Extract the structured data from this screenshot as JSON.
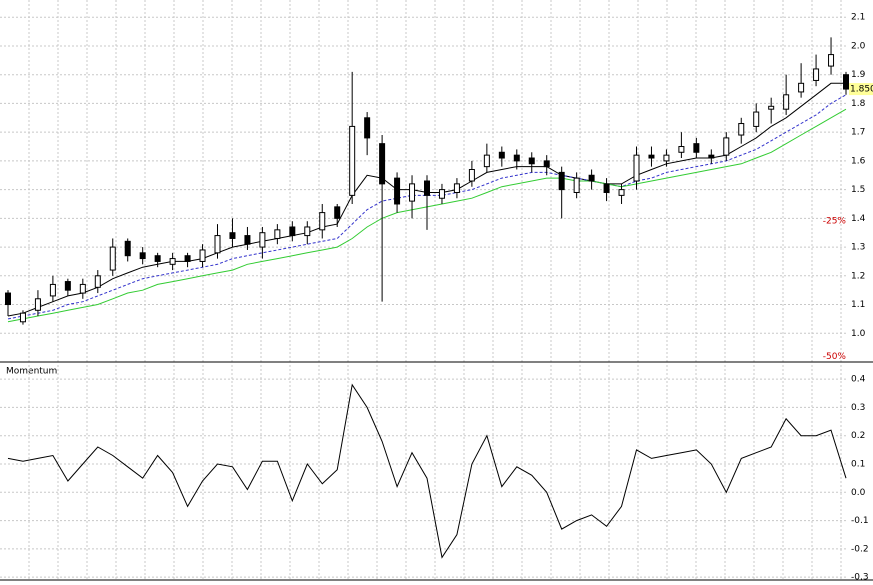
{
  "chart_data": [
    {
      "type": "candlestick",
      "categories": [
        null,
        null,
        null,
        null,
        null,
        null,
        null,
        null,
        null,
        null,
        null,
        null,
        null,
        null,
        null,
        null,
        null,
        null,
        null,
        null,
        null,
        null,
        null,
        null,
        null,
        null,
        null,
        null,
        null,
        null,
        null,
        null,
        null,
        null,
        null,
        null,
        null,
        null,
        null,
        null,
        null,
        null,
        null,
        null,
        null,
        null,
        null,
        null,
        null,
        null,
        null,
        null,
        null,
        null,
        null,
        null,
        null
      ],
      "open": [
        1.14,
        1.04,
        1.08,
        1.13,
        1.18,
        1.14,
        1.16,
        1.22,
        1.32,
        1.28,
        1.27,
        1.24,
        1.27,
        1.25,
        1.28,
        1.35,
        1.34,
        1.3,
        1.33,
        1.37,
        1.34,
        1.36,
        1.44,
        1.48,
        1.75,
        1.66,
        1.54,
        1.46,
        1.53,
        1.47,
        1.49,
        1.53,
        1.58,
        1.63,
        1.62,
        1.61,
        1.6,
        1.56,
        1.49,
        1.55,
        1.52,
        1.48,
        1.53,
        1.62,
        1.6,
        1.63,
        1.66,
        1.62,
        1.62,
        1.69,
        1.72,
        1.78,
        1.78,
        1.84,
        1.88,
        1.93,
        1.9
      ],
      "high": [
        1.15,
        1.08,
        1.15,
        1.2,
        1.19,
        1.19,
        1.22,
        1.33,
        1.33,
        1.3,
        1.28,
        1.28,
        1.28,
        1.31,
        1.38,
        1.4,
        1.37,
        1.37,
        1.38,
        1.39,
        1.39,
        1.45,
        1.45,
        1.91,
        1.77,
        1.69,
        1.56,
        1.55,
        1.55,
        1.52,
        1.54,
        1.6,
        1.66,
        1.65,
        1.64,
        1.63,
        1.62,
        1.58,
        1.56,
        1.57,
        1.54,
        1.52,
        1.65,
        1.65,
        1.64,
        1.7,
        1.68,
        1.64,
        1.7,
        1.75,
        1.8,
        1.82,
        1.9,
        1.94,
        1.97,
        2.03,
        1.91
      ],
      "low": [
        1.06,
        1.03,
        1.06,
        1.11,
        1.13,
        1.12,
        1.14,
        1.2,
        1.25,
        1.24,
        1.23,
        1.22,
        1.23,
        1.23,
        1.26,
        1.3,
        1.29,
        1.26,
        1.31,
        1.32,
        1.31,
        1.33,
        1.37,
        1.45,
        1.62,
        1.11,
        1.42,
        1.4,
        1.36,
        1.45,
        1.47,
        1.51,
        1.56,
        1.58,
        1.57,
        1.56,
        1.55,
        1.4,
        1.47,
        1.5,
        1.46,
        1.45,
        1.5,
        1.58,
        1.58,
        1.61,
        1.61,
        1.59,
        1.6,
        1.66,
        1.7,
        1.73,
        1.76,
        1.82,
        1.86,
        1.9,
        1.83
      ],
      "close": [
        1.1,
        1.07,
        1.12,
        1.17,
        1.15,
        1.17,
        1.2,
        1.3,
        1.27,
        1.26,
        1.25,
        1.26,
        1.25,
        1.29,
        1.34,
        1.33,
        1.31,
        1.35,
        1.36,
        1.34,
        1.37,
        1.42,
        1.4,
        1.72,
        1.68,
        1.52,
        1.45,
        1.52,
        1.48,
        1.5,
        1.52,
        1.57,
        1.62,
        1.61,
        1.6,
        1.59,
        1.58,
        1.5,
        1.54,
        1.53,
        1.49,
        1.5,
        1.62,
        1.61,
        1.62,
        1.65,
        1.63,
        1.61,
        1.68,
        1.73,
        1.77,
        1.79,
        1.83,
        1.87,
        1.92,
        1.97,
        1.85
      ],
      "series": [
        {
          "color": "#000000",
          "style": "solid",
          "values": [
            1.06,
            1.07,
            1.09,
            1.11,
            1.13,
            1.14,
            1.16,
            1.19,
            1.21,
            1.23,
            1.24,
            1.25,
            1.25,
            1.26,
            1.28,
            1.3,
            1.31,
            1.32,
            1.33,
            1.34,
            1.35,
            1.37,
            1.38,
            1.48,
            1.55,
            1.54,
            1.5,
            1.5,
            1.49,
            1.49,
            1.5,
            1.53,
            1.56,
            1.57,
            1.58,
            1.58,
            1.58,
            1.55,
            1.54,
            1.53,
            1.52,
            1.52,
            1.55,
            1.57,
            1.59,
            1.6,
            1.61,
            1.61,
            1.62,
            1.65,
            1.68,
            1.72,
            1.75,
            1.79,
            1.83,
            1.87,
            1.87
          ]
        },
        {
          "color": "#3333cc",
          "style": "dashed",
          "values": [
            1.05,
            1.06,
            1.07,
            1.08,
            1.1,
            1.11,
            1.13,
            1.15,
            1.17,
            1.19,
            1.2,
            1.21,
            1.22,
            1.23,
            1.24,
            1.26,
            1.27,
            1.28,
            1.29,
            1.3,
            1.31,
            1.32,
            1.33,
            1.38,
            1.43,
            1.46,
            1.47,
            1.48,
            1.48,
            1.48,
            1.49,
            1.5,
            1.52,
            1.54,
            1.55,
            1.56,
            1.56,
            1.55,
            1.54,
            1.53,
            1.52,
            1.51,
            1.53,
            1.54,
            1.56,
            1.57,
            1.58,
            1.59,
            1.6,
            1.62,
            1.64,
            1.67,
            1.7,
            1.73,
            1.76,
            1.8,
            1.83
          ]
        },
        {
          "color": "#33cc33",
          "style": "solid",
          "values": [
            1.04,
            1.05,
            1.06,
            1.07,
            1.08,
            1.09,
            1.1,
            1.12,
            1.14,
            1.15,
            1.17,
            1.18,
            1.19,
            1.2,
            1.21,
            1.22,
            1.24,
            1.25,
            1.26,
            1.27,
            1.28,
            1.29,
            1.3,
            1.33,
            1.37,
            1.4,
            1.42,
            1.43,
            1.44,
            1.45,
            1.46,
            1.47,
            1.49,
            1.51,
            1.52,
            1.53,
            1.54,
            1.54,
            1.53,
            1.53,
            1.52,
            1.51,
            1.52,
            1.53,
            1.54,
            1.55,
            1.56,
            1.57,
            1.58,
            1.59,
            1.61,
            1.63,
            1.66,
            1.69,
            1.72,
            1.75,
            1.78
          ]
        }
      ],
      "ylim": [
        0.9,
        2.16
      ],
      "yticks": [
        {
          "value": 1,
          "label": "1.0"
        },
        1.1,
        1.2,
        1.3,
        1.4,
        1.5,
        1.6,
        1.7,
        1.8,
        1.9,
        {
          "value": 2,
          "label": "2.0"
        },
        2.1
      ],
      "last_price": {
        "value": 1.85,
        "label": "1.850"
      },
      "annotations": [
        {
          "text": "-25%",
          "y": 1.39
        },
        {
          "text": "-50%",
          "y": 0.92
        }
      ],
      "grid": true
    },
    {
      "type": "line",
      "title": "Momentum",
      "series": [
        {
          "color": "#000000",
          "values": [
            0.12,
            0.11,
            0.12,
            0.13,
            0.04,
            0.1,
            0.16,
            0.13,
            0.09,
            0.05,
            0.13,
            0.07,
            -0.05,
            0.04,
            0.1,
            0.09,
            0.01,
            0.11,
            0.11,
            -0.03,
            0.1,
            0.03,
            0.08,
            0.38,
            0.3,
            0.18,
            0.02,
            0.14,
            0.05,
            -0.23,
            -0.15,
            0.1,
            0.2,
            0.02,
            0.09,
            0.06,
            0.0,
            -0.13,
            -0.1,
            -0.08,
            -0.12,
            -0.05,
            0.15,
            0.12,
            0.13,
            0.14,
            0.15,
            0.1,
            0.0,
            0.12,
            0.14,
            0.16,
            0.26,
            0.2,
            0.2,
            0.22,
            0.05
          ]
        }
      ],
      "ylim": [
        -0.31,
        0.45
      ],
      "yticks": [
        0.4,
        0.3,
        0.2,
        0.1,
        {
          "value": 0,
          "label": "0.0"
        },
        -0.1,
        -0.2,
        -0.3
      ],
      "grid": true
    }
  ]
}
